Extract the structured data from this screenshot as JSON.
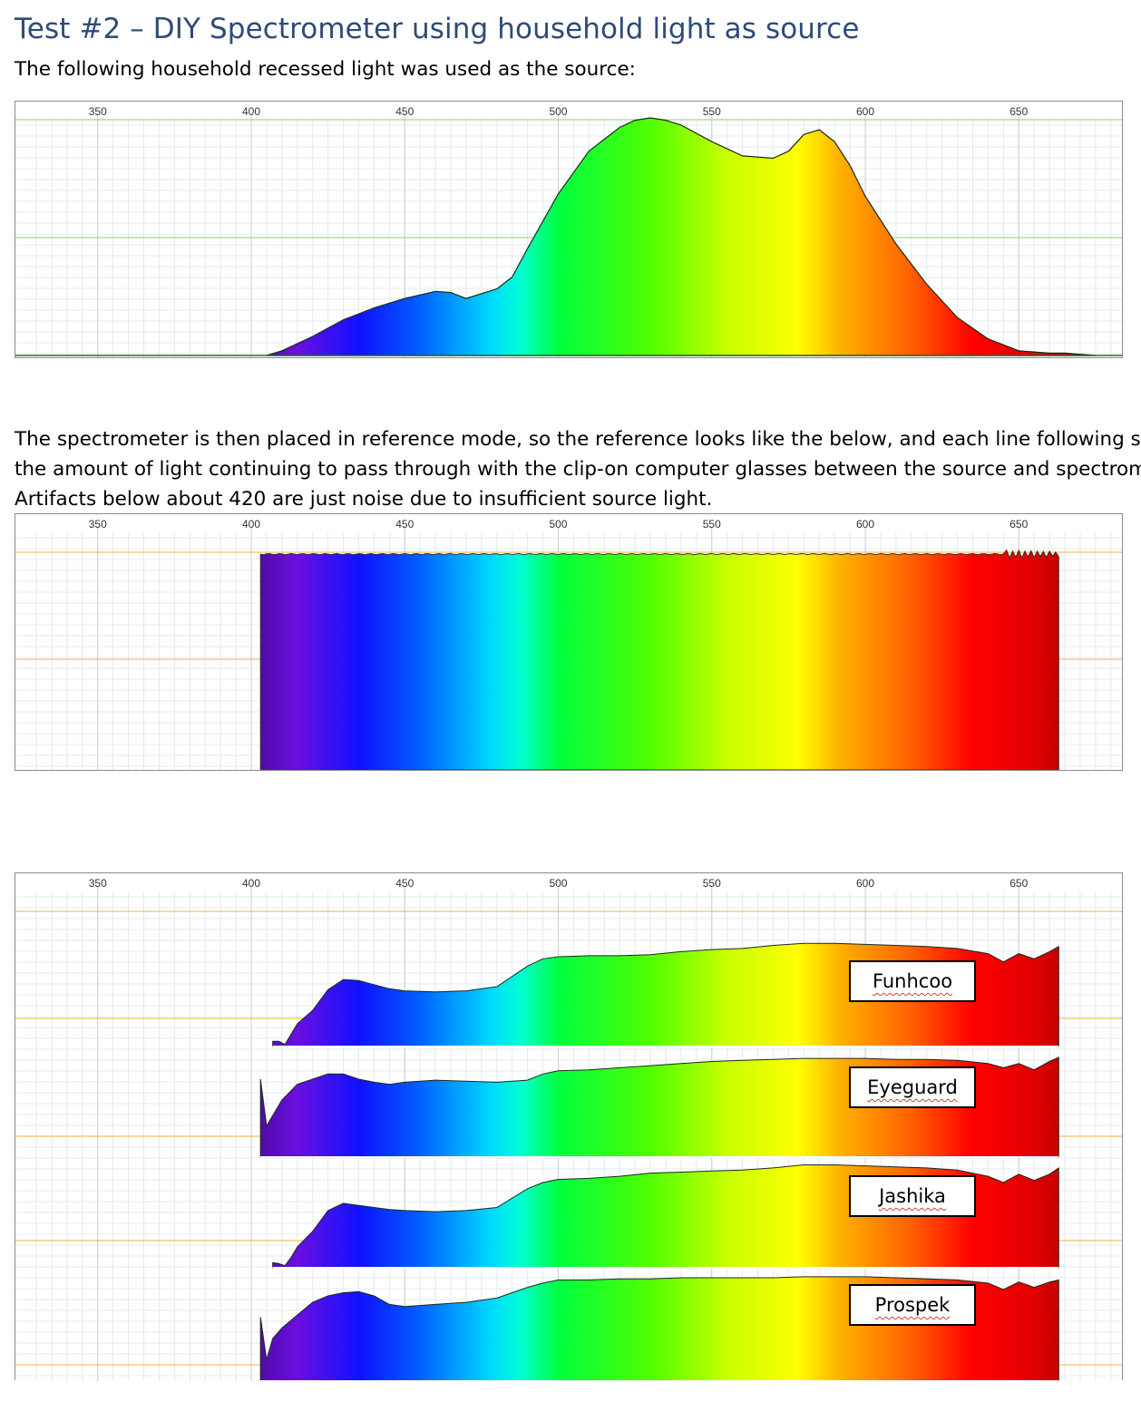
{
  "heading": "Test #2 – DIY Spectrometer using household light as source",
  "intro": "The following household recessed light was used as the source:",
  "reference_text": [
    "The spectrometer is then placed in reference mode, so the reference looks like the below, and each line following shows",
    "the amount of light continuing to pass through with the clip-on computer glasses between the source and spectrometer.",
    "Artifacts below about 420 are just noise due to insufficient source light."
  ],
  "axis_ticks": [
    "350",
    "400",
    "450",
    "500",
    "550",
    "600",
    "650"
  ],
  "gridline_colors": {
    "source": "#9ac96a",
    "reference": "#f0b040"
  },
  "chart_data": [
    {
      "type": "area",
      "id": "source-spectrum",
      "x_ticks": [
        350,
        400,
        450,
        500,
        550,
        600,
        650
      ],
      "xlim": [
        320,
        680
      ],
      "ylim": [
        0,
        1
      ],
      "fill": "wavelength rainbow gradient",
      "x": [
        405,
        410,
        420,
        430,
        440,
        450,
        460,
        465,
        470,
        480,
        485,
        490,
        500,
        510,
        520,
        525,
        530,
        535,
        540,
        550,
        560,
        570,
        575,
        580,
        585,
        590,
        595,
        600,
        610,
        620,
        630,
        640,
        650,
        660,
        665,
        675
      ],
      "y": [
        0.0,
        0.02,
        0.08,
        0.15,
        0.2,
        0.24,
        0.27,
        0.265,
        0.24,
        0.28,
        0.33,
        0.45,
        0.68,
        0.86,
        0.96,
        0.99,
        1.0,
        0.99,
        0.97,
        0.9,
        0.84,
        0.83,
        0.86,
        0.93,
        0.95,
        0.9,
        0.8,
        0.67,
        0.47,
        0.3,
        0.16,
        0.07,
        0.02,
        0.01,
        0.01,
        0.0
      ]
    },
    {
      "type": "area",
      "id": "reference-spectrum",
      "x_ticks": [
        350,
        400,
        450,
        500,
        550,
        600,
        650
      ],
      "xlim": [
        320,
        680
      ],
      "ylim": [
        0,
        1
      ],
      "x": [
        403,
        663
      ],
      "y": [
        0.85,
        0.85
      ]
    },
    {
      "type": "area",
      "id": "glasses-transmission",
      "x_ticks": [
        350,
        400,
        450,
        500,
        550,
        600,
        650
      ],
      "xlim": [
        320,
        680
      ],
      "series": [
        {
          "name": "Funhcoo",
          "x": [
            407,
            409,
            411,
            413,
            415,
            420,
            425,
            430,
            435,
            440,
            445,
            450,
            460,
            470,
            480,
            490,
            495,
            500,
            510,
            520,
            530,
            540,
            550,
            560,
            570,
            580,
            590,
            600,
            610,
            620,
            630,
            640,
            645,
            650,
            655,
            660,
            663
          ],
          "y": [
            0.05,
            0.05,
            0.02,
            0.12,
            0.22,
            0.35,
            0.55,
            0.65,
            0.64,
            0.6,
            0.56,
            0.54,
            0.53,
            0.54,
            0.58,
            0.78,
            0.85,
            0.87,
            0.88,
            0.88,
            0.89,
            0.92,
            0.94,
            0.95,
            0.98,
            1.0,
            1.0,
            0.99,
            0.98,
            0.97,
            0.95,
            0.9,
            0.82,
            0.9,
            0.85,
            0.92,
            0.97
          ]
        },
        {
          "name": "Eyeguard",
          "x": [
            403,
            405,
            407,
            410,
            415,
            420,
            425,
            430,
            435,
            440,
            445,
            450,
            460,
            470,
            480,
            490,
            495,
            500,
            510,
            520,
            530,
            540,
            550,
            560,
            570,
            580,
            590,
            600,
            610,
            620,
            630,
            640,
            645,
            650,
            655,
            660,
            663
          ],
          "y": [
            0.75,
            0.3,
            0.4,
            0.55,
            0.7,
            0.75,
            0.8,
            0.8,
            0.75,
            0.72,
            0.7,
            0.72,
            0.74,
            0.73,
            0.72,
            0.74,
            0.8,
            0.83,
            0.84,
            0.86,
            0.88,
            0.9,
            0.92,
            0.93,
            0.94,
            0.95,
            0.95,
            0.95,
            0.94,
            0.94,
            0.93,
            0.9,
            0.86,
            0.9,
            0.84,
            0.92,
            0.96
          ]
        },
        {
          "name": "Jashika",
          "x": [
            407,
            409,
            411,
            413,
            415,
            420,
            425,
            430,
            435,
            440,
            445,
            450,
            460,
            470,
            480,
            490,
            495,
            500,
            510,
            520,
            530,
            540,
            550,
            560,
            570,
            580,
            590,
            600,
            610,
            620,
            630,
            640,
            645,
            650,
            655,
            660,
            663
          ],
          "y": [
            0.05,
            0.04,
            0.02,
            0.1,
            0.2,
            0.35,
            0.55,
            0.62,
            0.6,
            0.58,
            0.56,
            0.55,
            0.54,
            0.55,
            0.58,
            0.76,
            0.82,
            0.85,
            0.86,
            0.88,
            0.91,
            0.92,
            0.93,
            0.94,
            0.96,
            0.99,
            0.99,
            0.98,
            0.97,
            0.96,
            0.94,
            0.88,
            0.82,
            0.9,
            0.84,
            0.9,
            0.96
          ]
        },
        {
          "name": "Prospek",
          "x": [
            403,
            405,
            407,
            410,
            415,
            420,
            425,
            430,
            435,
            440,
            445,
            450,
            460,
            470,
            480,
            490,
            495,
            500,
            510,
            520,
            530,
            540,
            550,
            560,
            570,
            580,
            590,
            600,
            610,
            620,
            630,
            640,
            645,
            650,
            655,
            660,
            663
          ],
          "y": [
            0.6,
            0.2,
            0.4,
            0.5,
            0.62,
            0.74,
            0.8,
            0.83,
            0.84,
            0.8,
            0.72,
            0.7,
            0.72,
            0.74,
            0.78,
            0.88,
            0.92,
            0.95,
            0.95,
            0.96,
            0.96,
            0.97,
            0.97,
            0.97,
            0.97,
            0.98,
            0.98,
            0.98,
            0.97,
            0.96,
            0.95,
            0.92,
            0.86,
            0.93,
            0.88,
            0.93,
            0.95
          ]
        }
      ]
    }
  ]
}
